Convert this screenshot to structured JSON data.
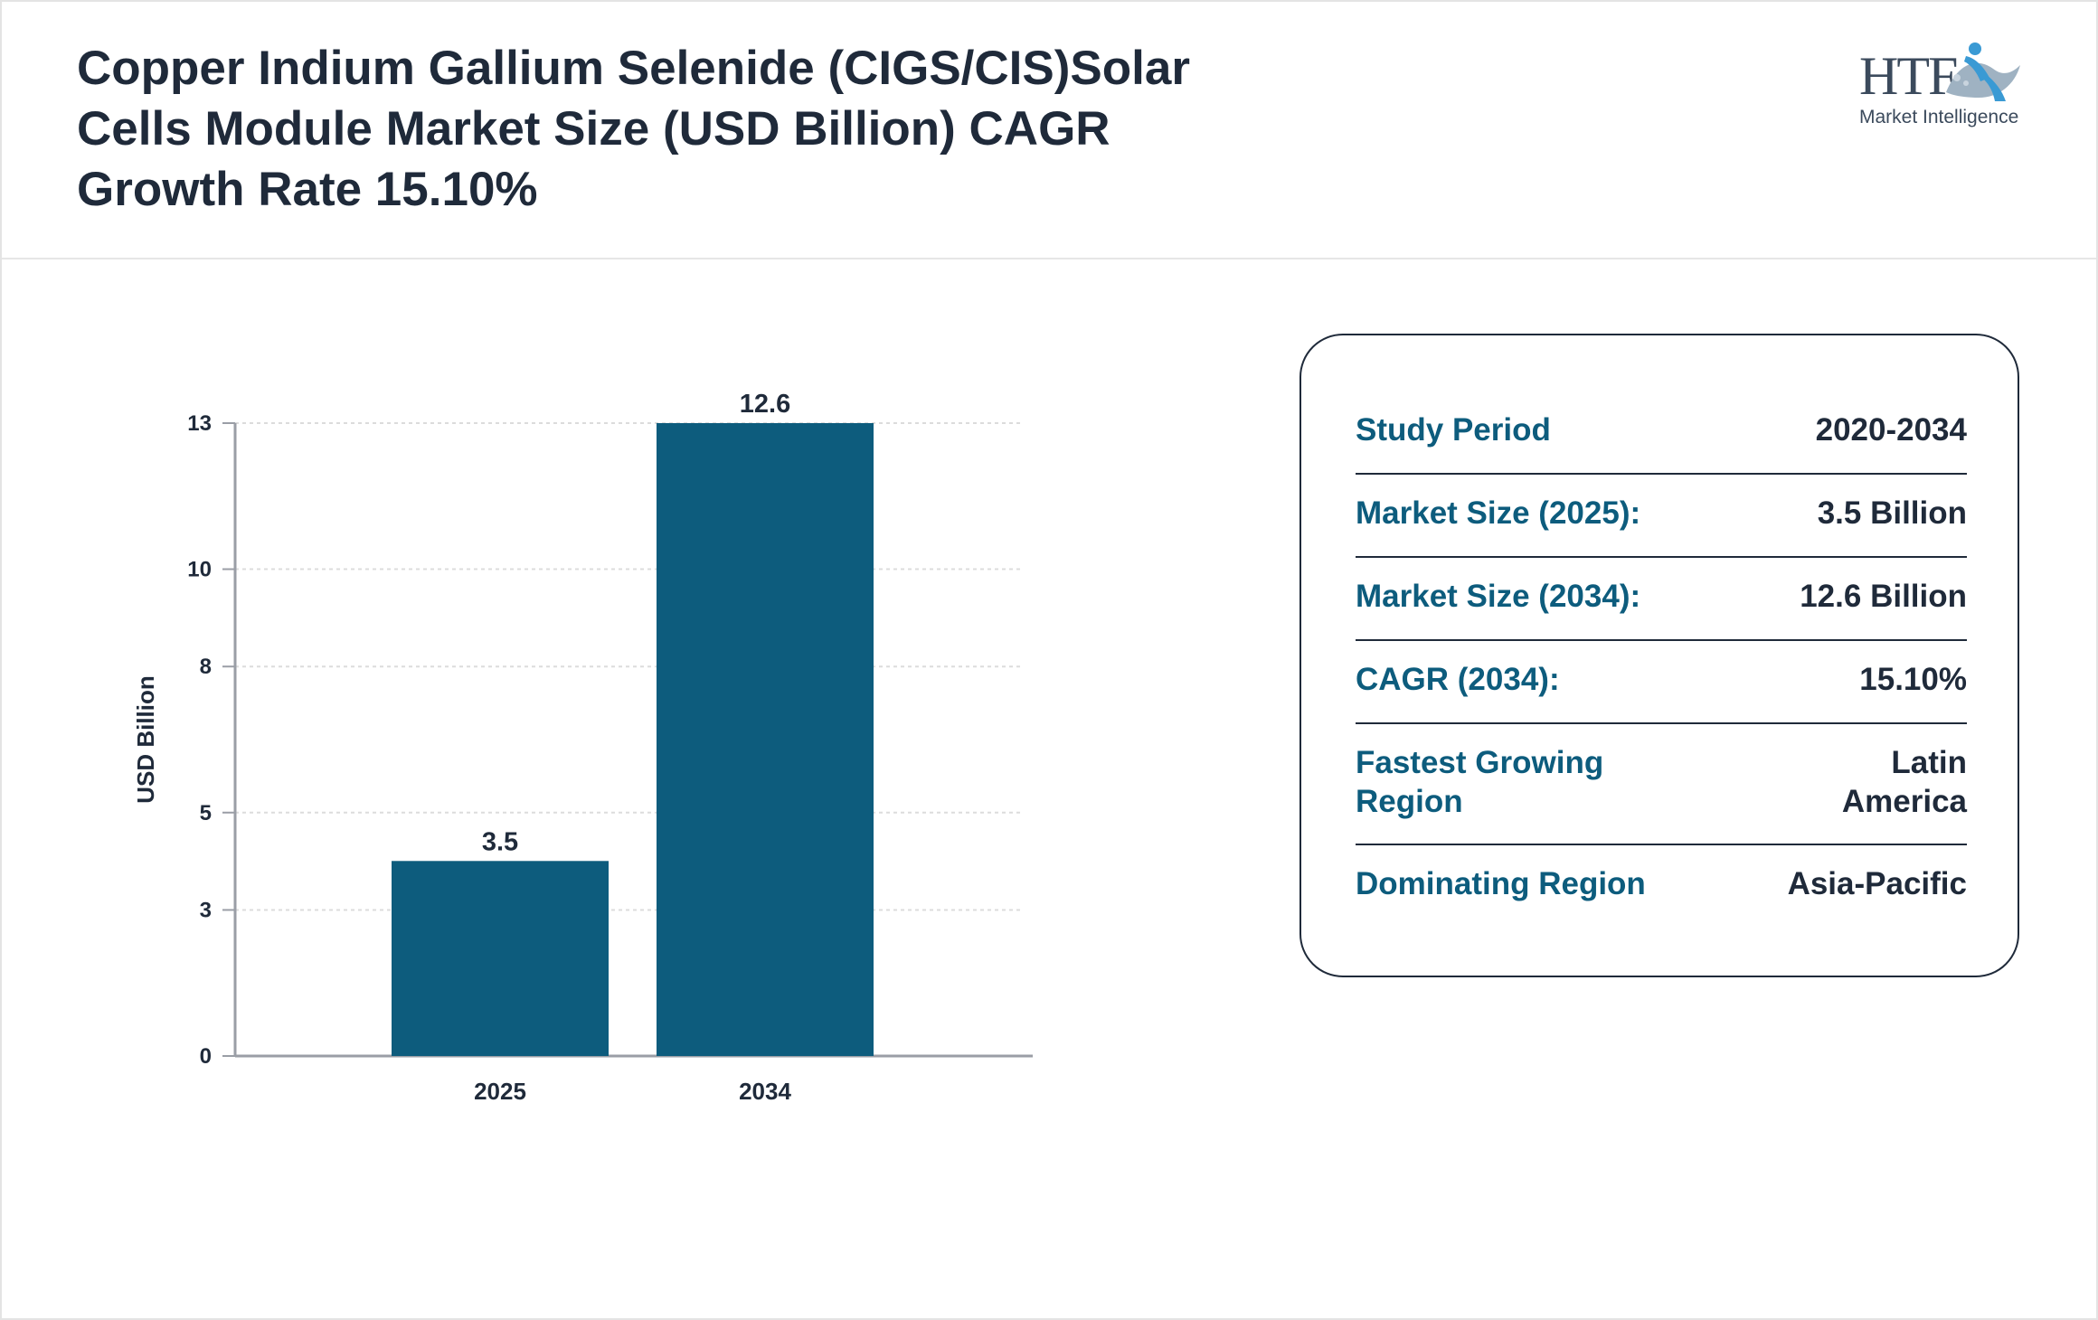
{
  "header": {
    "title": "Copper Indium Gallium Selenide (CIGS/CIS)Solar Cells Module Market Size (USD Billion) CAGR Growth Rate 15.10%",
    "logo_text": "HTF",
    "logo_subtitle": "Market Intelligence"
  },
  "chart_data": {
    "type": "bar",
    "categories": [
      "2025",
      "2034"
    ],
    "values": [
      3.5,
      12.6
    ],
    "value_labels": [
      "3.5",
      "12.6"
    ],
    "ylabel": "USD Billion",
    "xlabel": "",
    "yticks": [
      0,
      3,
      5,
      8,
      10,
      13
    ],
    "ylim": [
      0,
      13
    ],
    "grid": true,
    "bar_color": "#0d5c7d"
  },
  "info": {
    "rows": [
      {
        "label": "Study Period",
        "value": "2020-2034"
      },
      {
        "label": "Market Size (2025):",
        "value": "3.5 Billion"
      },
      {
        "label": "Market Size (2034):",
        "value": "12.6 Billion"
      },
      {
        "label": "CAGR (2034):",
        "value": "15.10%"
      },
      {
        "label": "Fastest Growing Region",
        "value": "Latin America"
      },
      {
        "label": "Dominating Region",
        "value": "Asia-Pacific"
      }
    ]
  },
  "colors": {
    "accent": "#0d5c7d",
    "text_dark": "#1f2a3a",
    "logo_blue": "#3a9ad4"
  }
}
